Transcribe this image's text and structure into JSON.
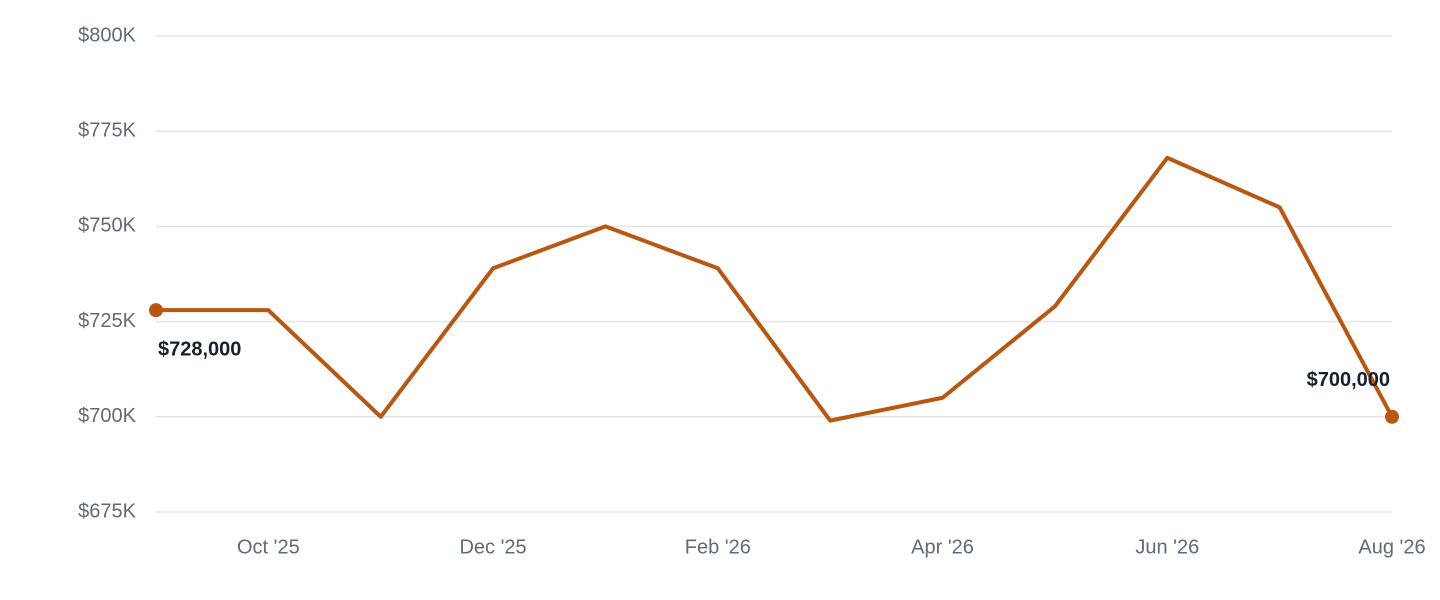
{
  "chart_data": {
    "type": "line",
    "categories": [
      null,
      "Oct '25",
      null,
      "Dec '25",
      null,
      "Feb '26",
      null,
      "Apr '26",
      null,
      "Jun '26",
      null,
      "Aug '26"
    ],
    "values": [
      728000,
      728000,
      700000,
      739000,
      750000,
      739000,
      699000,
      705000,
      729000,
      768000,
      755000,
      700000
    ],
    "value_labels": [
      "$728,000",
      null,
      null,
      null,
      null,
      null,
      null,
      null,
      null,
      null,
      null,
      "$700,000"
    ],
    "color": "#b9560f",
    "ylim": [
      675000,
      800000
    ],
    "yticks": [
      {
        "value": 675000,
        "label": "$675K"
      },
      {
        "value": 700000,
        "label": "$700K"
      },
      {
        "value": 725000,
        "label": "$725K"
      },
      {
        "value": 750000,
        "label": "$750K"
      },
      {
        "value": 775000,
        "label": "$775K"
      },
      {
        "value": 800000,
        "label": "$800K"
      }
    ],
    "grid": true
  }
}
